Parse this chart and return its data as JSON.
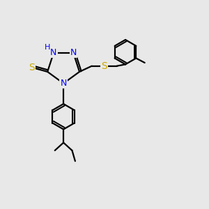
{
  "bg_color": "#e8e8e8",
  "atom_colors": {
    "N": "#0000FF",
    "S": "#CCAA00",
    "C": "#000000",
    "H": "#0000FF"
  },
  "bond_color": "#000000",
  "bond_width": 1.6,
  "fig_width": 3.0,
  "fig_height": 3.0,
  "dpi": 100,
  "xlim": [
    0,
    10
  ],
  "ylim": [
    0,
    10
  ]
}
